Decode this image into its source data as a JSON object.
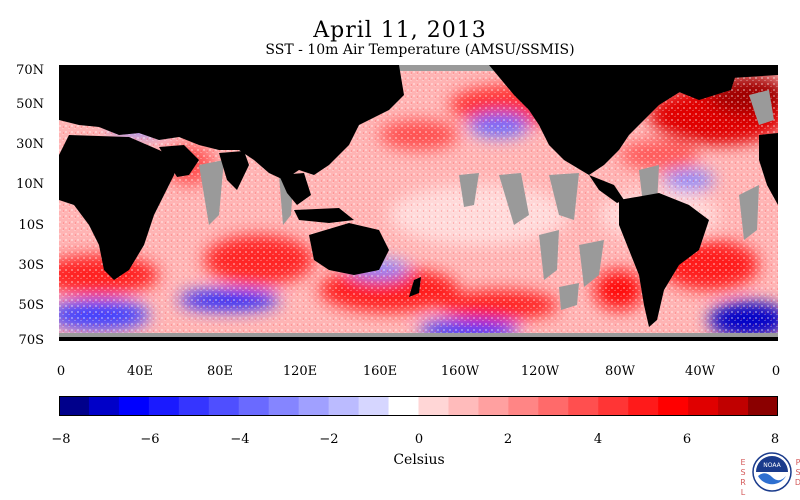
{
  "title": "April 11, 2013",
  "subtitle": "SST - 10m Air Temperature (AMSU/SSMIS)",
  "lat_labels": [
    "70N",
    "50N",
    "30N",
    "10N",
    "10S",
    "30S",
    "50S",
    "70S"
  ],
  "lon_labels": [
    "0",
    "40E",
    "80E",
    "120E",
    "160E",
    "160W",
    "120W",
    "80W",
    "40W",
    "0"
  ],
  "colorbar": {
    "ticks": [
      "−8",
      "−6",
      "−4",
      "−2",
      "0",
      "2",
      "4",
      "6",
      "8"
    ],
    "unit": "Celsius",
    "colors": [
      "#00008b",
      "#0000c8",
      "#0000ff",
      "#1a1aff",
      "#3535ff",
      "#4f4fff",
      "#6a6aff",
      "#8585ff",
      "#a0a0ff",
      "#bbbbff",
      "#d6d6ff",
      "#ffffff",
      "#ffd6d6",
      "#ffbbbb",
      "#ffa0a0",
      "#ff8585",
      "#ff6a6a",
      "#ff4f4f",
      "#ff3535",
      "#ff1a1a",
      "#ff0000",
      "#e00000",
      "#c00000",
      "#8b0000"
    ]
  },
  "credit": {
    "left": "ESRL",
    "right": "PSD",
    "logo_text": "NOAA"
  },
  "colors": {
    "land": "#000000",
    "missing": "#9a9a9a",
    "warm": "#ff3030",
    "cool": "#3030ff"
  }
}
